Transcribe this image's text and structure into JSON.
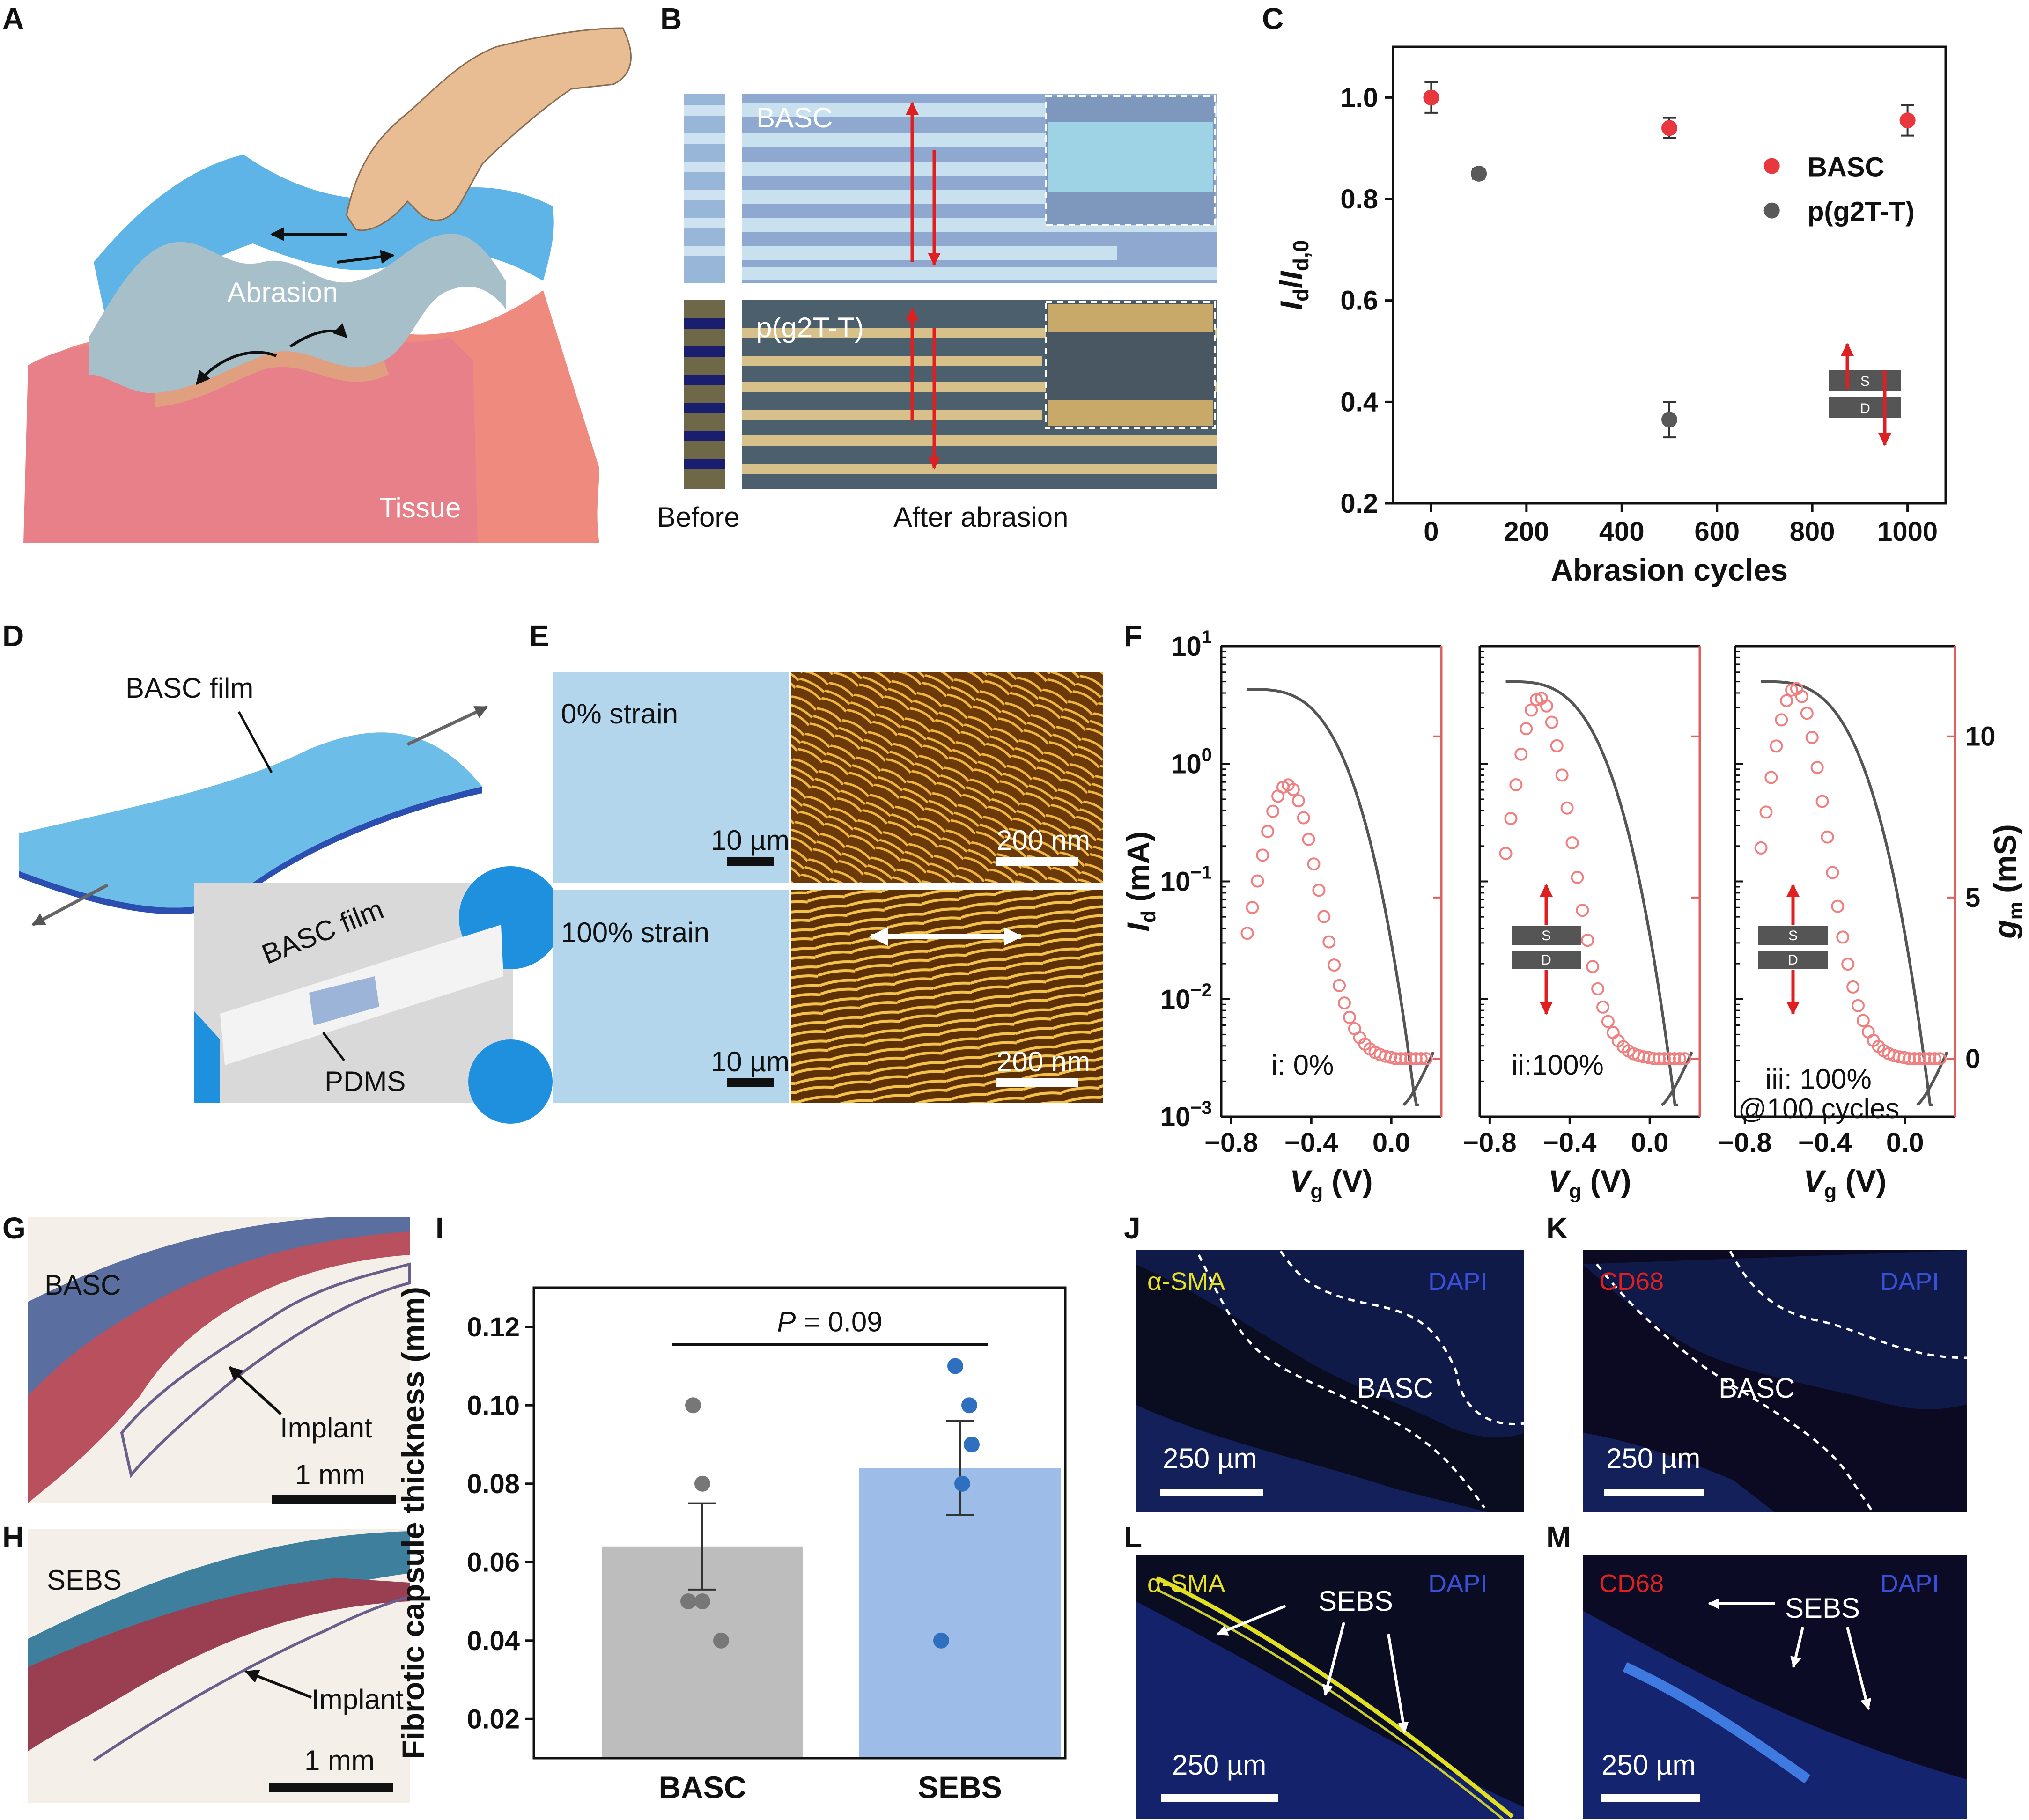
{
  "panels": {
    "A": {
      "label": "A",
      "abrasion": "Abrasion",
      "tissue": "Tissue"
    },
    "B": {
      "label": "B",
      "basc": "BASC",
      "pg2t": "p(g2T-T)",
      "before": "Before",
      "after": "After abrasion"
    },
    "C": {
      "label": "C"
    },
    "D": {
      "label": "D",
      "film": "BASC film",
      "film_photo": "BASC film",
      "pdms": "PDMS"
    },
    "E": {
      "label": "E",
      "strain0": "0% strain",
      "strain100": "100% strain",
      "scale_um": "10 µm",
      "scale_nm": "200 nm"
    },
    "F": {
      "label": "F",
      "sub": [
        "i: 0%",
        "ii:100%",
        "iii: 100%",
        "@100 cycles"
      ],
      "s": "S",
      "d": "D"
    },
    "G": {
      "label": "G",
      "name": "BASC",
      "implant": "Implant",
      "scale": "1 mm"
    },
    "H": {
      "label": "H",
      "name": "SEBS",
      "implant": "Implant",
      "scale": "1 mm"
    },
    "I": {
      "label": "I"
    },
    "J": {
      "label": "J",
      "stain": "α-SMA",
      "dapi": "DAPI",
      "material": "BASC",
      "scale": "250 µm"
    },
    "K": {
      "label": "K",
      "stain": "CD68",
      "dapi": "DAPI",
      "material": "BASC",
      "scale": "250 µm"
    },
    "L": {
      "label": "L",
      "stain": "α-SMA",
      "dapi": "DAPI",
      "material": "SEBS",
      "scale": "250 µm"
    },
    "M": {
      "label": "M",
      "stain": "CD68",
      "dapi": "DAPI",
      "material": "SEBS",
      "scale": "250 µm"
    }
  },
  "colors": {
    "basc_red": "#e8383d",
    "pg2t_gray": "#595959",
    "gm_pink": "#f08080",
    "bar_gray": "#bdbdbd",
    "bar_blue": "#9dbde8",
    "dot_blue": "#2f6fbf"
  },
  "chart_data": [
    {
      "id": "C",
      "type": "scatter",
      "xlabel": "Abrasion cycles",
      "ylabel": "I_d/I_d,0",
      "xlim": [
        -80,
        1080
      ],
      "ylim": [
        0.2,
        1.1
      ],
      "xticks": [
        0,
        200,
        400,
        600,
        800,
        1000
      ],
      "yticks": [
        0.2,
        0.4,
        0.6,
        0.8,
        1.0
      ],
      "legend_position": "right",
      "series": [
        {
          "name": "BASC",
          "color": "#e8383d",
          "points": [
            {
              "x": 0,
              "y": 1.0,
              "err": 0.03
            },
            {
              "x": 500,
              "y": 0.94,
              "err": 0.02
            },
            {
              "x": 1000,
              "y": 0.955,
              "err": 0.03
            }
          ]
        },
        {
          "name": "p(g2T-T)",
          "color": "#595959",
          "points": [
            {
              "x": 100,
              "y": 0.85,
              "err": 0.01
            },
            {
              "x": 500,
              "y": 0.365,
              "err": 0.035
            }
          ]
        }
      ]
    },
    {
      "id": "F",
      "type": "line",
      "xlabel": "V_g (V)",
      "ylabel_left": "I_d (mA)",
      "ylabel_right": "g_m (mS)",
      "x_range": [
        -0.85,
        0.25
      ],
      "xticks": [
        -0.8,
        -0.4,
        0.0
      ],
      "xtick_labels": [
        "−0.8",
        "−0.4",
        "0.0"
      ],
      "y_left_log_range": [
        -3,
        1
      ],
      "y_left_ticks": [
        "10^1",
        "10^0",
        "10^−1",
        "10^−2",
        "10^−3"
      ],
      "y_right_range": [
        -1.8,
        12.8
      ],
      "y_right_ticks": [
        0,
        5,
        10
      ],
      "subplots": [
        {
          "name": "i: 0%",
          "id_top_mA": 4.3,
          "gm_peak_mS": 8.5,
          "gm_peak_vg": -0.52
        },
        {
          "name": "ii:100%",
          "id_top_mA": 5.0,
          "gm_peak_mS": 11.2,
          "gm_peak_vg": -0.55
        },
        {
          "name": "iii: 100% @100 cycles",
          "id_top_mA": 5.0,
          "gm_peak_mS": 11.5,
          "gm_peak_vg": -0.55
        }
      ]
    },
    {
      "id": "I",
      "type": "bar",
      "ylabel": "Fibrotic capsule thickness (mm)",
      "categories": [
        "BASC",
        "SEBS"
      ],
      "values": [
        0.064,
        0.084
      ],
      "errors": [
        0.011,
        0.012
      ],
      "points": [
        [
          0.1,
          0.08,
          0.05,
          0.05,
          0.04
        ],
        [
          0.11,
          0.1,
          0.09,
          0.08,
          0.04
        ]
      ],
      "ylim": [
        0.01,
        0.13
      ],
      "yticks": [
        0.02,
        0.04,
        0.06,
        0.08,
        0.1,
        0.12
      ],
      "annotation": "P = 0.09"
    }
  ]
}
